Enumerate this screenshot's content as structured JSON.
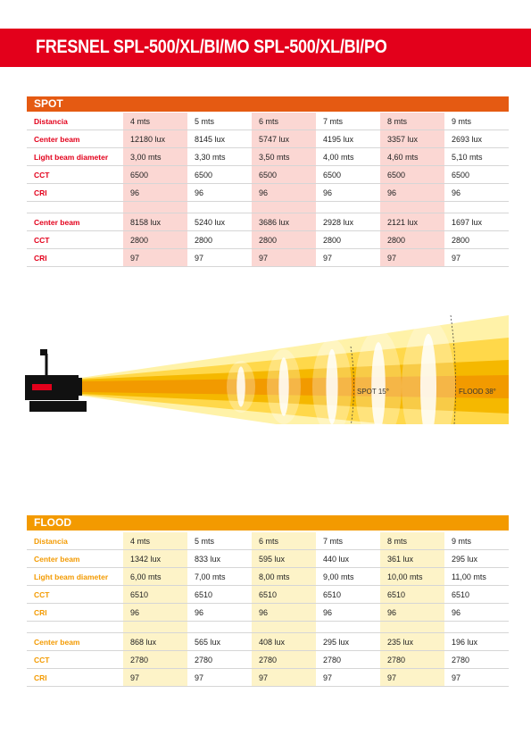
{
  "title": "FRESNEL SPL-500/XL/BI/MO SPL-500/XL/BI/PO",
  "spot": {
    "heading": "SPOT",
    "rows": [
      {
        "label": "Distancia",
        "values": [
          "4 mts",
          "5 mts",
          "6 mts",
          "7 mts",
          "8 mts",
          "9 mts"
        ]
      },
      {
        "label": "Center beam",
        "values": [
          "12180 lux",
          "8145 lux",
          "5747 lux",
          "4195 lux",
          "3357 lux",
          "2693 lux"
        ]
      },
      {
        "label": "Light beam diameter",
        "values": [
          "3,00 mts",
          "3,30 mts",
          "3,50 mts",
          "4,00 mts",
          "4,60 mts",
          "5,10 mts"
        ]
      },
      {
        "label": "CCT",
        "values": [
          "6500",
          "6500",
          "6500",
          "6500",
          "6500",
          "6500"
        ]
      },
      {
        "label": "CRI",
        "values": [
          "96",
          "96",
          "96",
          "96",
          "96",
          "96"
        ]
      }
    ],
    "rows2": [
      {
        "label": "Center beam",
        "values": [
          "8158 lux",
          "5240 lux",
          "3686 lux",
          "2928 lux",
          "2121 lux",
          "1697 lux"
        ]
      },
      {
        "label": "CCT",
        "values": [
          "2800",
          "2800",
          "2800",
          "2800",
          "2800",
          "2800"
        ]
      },
      {
        "label": "CRI",
        "values": [
          "97",
          "97",
          "97",
          "97",
          "97",
          "97"
        ]
      }
    ]
  },
  "diagram": {
    "spot_label": "SPOT 15°",
    "flood_label": "FLOOD 38°",
    "colors": {
      "outer": "#fff2a8",
      "mid": "#ffd84a",
      "inner": "#f5b800",
      "core": "#f29a00",
      "red": "#e3001b"
    }
  },
  "flood": {
    "heading": "FLOOD",
    "rows": [
      {
        "label": "Distancia",
        "values": [
          "4 mts",
          "5 mts",
          "6 mts",
          "7 mts",
          "8 mts",
          "9 mts"
        ]
      },
      {
        "label": "Center beam",
        "values": [
          "1342 lux",
          "833 lux",
          "595 lux",
          "440 lux",
          "361 lux",
          "295 lux"
        ]
      },
      {
        "label": "Light beam diameter",
        "values": [
          "6,00 mts",
          "7,00 mts",
          "8,00 mts",
          "9,00 mts",
          "10,00 mts",
          "11,00 mts"
        ]
      },
      {
        "label": "CCT",
        "values": [
          "6510",
          "6510",
          "6510",
          "6510",
          "6510",
          "6510"
        ]
      },
      {
        "label": "CRI",
        "values": [
          "96",
          "96",
          "96",
          "96",
          "96",
          "96"
        ]
      }
    ],
    "rows2": [
      {
        "label": "Center beam",
        "values": [
          "868 lux",
          "565 lux",
          "408 lux",
          "295 lux",
          "235 lux",
          "196 lux"
        ]
      },
      {
        "label": "CCT",
        "values": [
          "2780",
          "2780",
          "2780",
          "2780",
          "2780",
          "2780"
        ]
      },
      {
        "label": "CRI",
        "values": [
          "97",
          "97",
          "97",
          "97",
          "97",
          "97"
        ]
      }
    ]
  }
}
